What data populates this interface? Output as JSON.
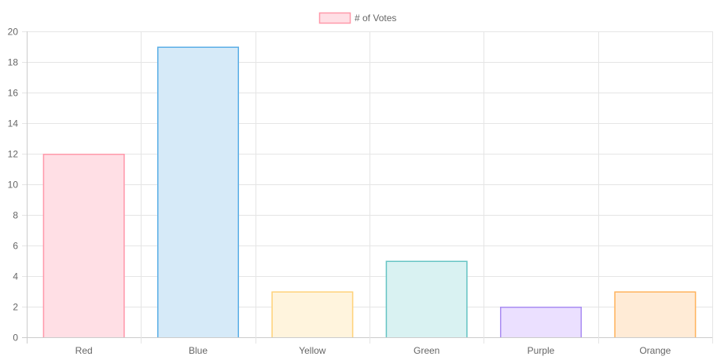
{
  "chart_data": {
    "type": "bar",
    "categories": [
      "Red",
      "Blue",
      "Yellow",
      "Green",
      "Purple",
      "Orange"
    ],
    "series": [
      {
        "name": "# of Votes",
        "values": [
          12,
          19,
          3,
          5,
          2,
          3
        ]
      }
    ],
    "ylim": [
      0,
      20
    ],
    "yticks": [
      0,
      2,
      4,
      6,
      8,
      10,
      12,
      14,
      16,
      18,
      20
    ],
    "grid": true,
    "legend_position": "top-center",
    "colors": {
      "fills": [
        "#ffdfe5",
        "#d6eaf8",
        "#fff4dd",
        "#d9f2f2",
        "#ebe0ff",
        "#ffebd6"
      ],
      "borders": [
        "#ff99aa",
        "#5aaee6",
        "#ffd27a",
        "#66c4c4",
        "#a98cf2",
        "#ffb35c"
      ],
      "legend_fill": "#ffdfe5",
      "legend_border": "#ff99aa",
      "grid": "#e5e5e5",
      "axis": "#cccccc",
      "text": "#666666"
    }
  }
}
